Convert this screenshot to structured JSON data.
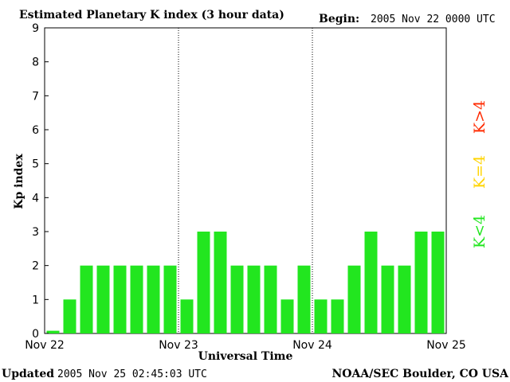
{
  "header": {
    "title": "Estimated Planetary K index (3 hour data)",
    "begin_label": "Begin:",
    "begin_value": "2005 Nov 22 0000 UTC"
  },
  "footer": {
    "updated_label": "Updated",
    "updated_value": "2005 Nov 25 02:45:03 UTC",
    "source": "NOAA/SEC Boulder, CO USA"
  },
  "legend": [
    {
      "label": "K>4",
      "color": "#ff2a00"
    },
    {
      "label": "K=4",
      "color": "#ffd400"
    },
    {
      "label": "K<4",
      "color": "#22e61f"
    }
  ],
  "chart_data": {
    "type": "bar",
    "title": "Estimated Planetary K index (3 hour data)",
    "xlabel": "Universal Time",
    "ylabel": "Kp index",
    "ylim": [
      0,
      9
    ],
    "yticks": [
      "0",
      "1",
      "2",
      "3",
      "4",
      "5",
      "6",
      "7",
      "8",
      "9"
    ],
    "xticks": [
      "Nov 22",
      "Nov 23",
      "Nov 24",
      "Nov 25"
    ],
    "bar_color": "#22e61f",
    "values": [
      0,
      1,
      2,
      2,
      2,
      2,
      2,
      2,
      1,
      3,
      3,
      2,
      2,
      2,
      1,
      2,
      1,
      1,
      2,
      3,
      2,
      2,
      3,
      3
    ],
    "grid": "dotted day separators"
  }
}
